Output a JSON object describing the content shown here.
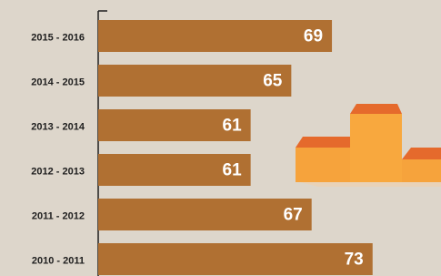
{
  "chart_data": {
    "type": "bar",
    "orientation": "horizontal",
    "categories": [
      "2015 - 2016",
      "2014 - 2015",
      "2013 - 2014",
      "2012 - 2013",
      "2011 - 2012",
      "2010 - 2011"
    ],
    "values": [
      69,
      65,
      61,
      61,
      67,
      73
    ],
    "color": "#b07032",
    "xlim": [
      46,
      80
    ]
  }
}
